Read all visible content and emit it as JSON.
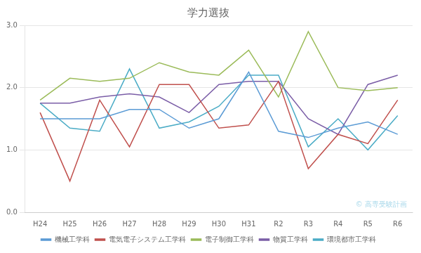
{
  "chart_data": {
    "type": "line",
    "title": "学力選抜",
    "categories": [
      "H24",
      "H25",
      "H26",
      "H27",
      "H28",
      "H29",
      "H30",
      "H31",
      "R2",
      "R3",
      "R4",
      "R5",
      "R6"
    ],
    "series": [
      {
        "name": "機械工学科",
        "color": "#5B9BD5",
        "values": [
          1.5,
          1.5,
          1.5,
          1.65,
          1.65,
          1.35,
          1.5,
          2.25,
          1.3,
          1.2,
          1.35,
          1.45,
          1.25
        ]
      },
      {
        "name": "電気電子システム工学科",
        "color": "#C0504D",
        "values": [
          1.6,
          0.5,
          1.8,
          1.05,
          2.05,
          2.05,
          1.35,
          1.4,
          2.1,
          0.7,
          1.25,
          1.1,
          1.8
        ]
      },
      {
        "name": "電子制御工学科",
        "color": "#9BBB59",
        "values": [
          1.8,
          2.15,
          2.1,
          2.15,
          2.4,
          2.25,
          2.2,
          2.6,
          1.85,
          2.9,
          2.0,
          1.95,
          2.0
        ]
      },
      {
        "name": "物質工学科",
        "color": "#7B5EA7",
        "values": [
          1.75,
          1.75,
          1.85,
          1.9,
          1.85,
          1.6,
          2.05,
          2.1,
          2.1,
          1.5,
          1.25,
          2.05,
          2.2
        ]
      },
      {
        "name": "環境都市工学科",
        "color": "#4BACC6",
        "values": [
          1.75,
          1.35,
          1.3,
          2.3,
          1.35,
          1.45,
          1.7,
          2.2,
          2.2,
          1.05,
          1.5,
          1.0,
          1.55
        ]
      }
    ],
    "ylim": [
      0.0,
      3.0
    ],
    "yticks": [
      {
        "value": 0,
        "label": "0.0"
      },
      {
        "value": 1,
        "label": "1.0"
      },
      {
        "value": 2,
        "label": "2.0"
      },
      {
        "value": 3,
        "label": "3.0"
      }
    ],
    "grid": "y",
    "legend": "bottom",
    "annotations": [
      {
        "text": "© 高専受験計画",
        "color": "#A8D8EA"
      }
    ]
  }
}
